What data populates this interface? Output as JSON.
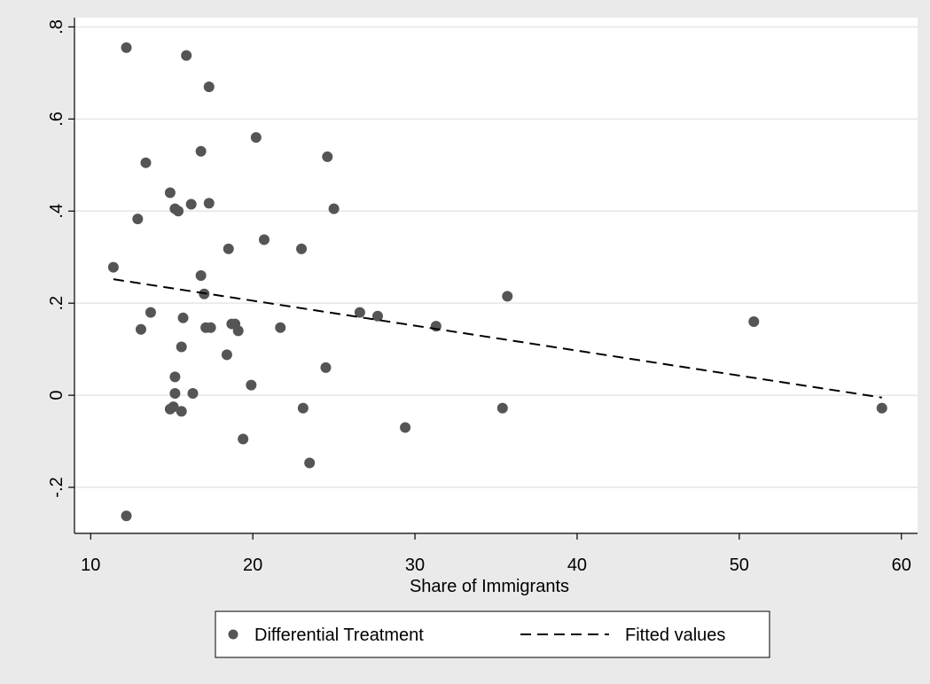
{
  "chart_data": {
    "type": "scatter",
    "xlabel": "Share of Immigrants",
    "ylabel": "",
    "xlim": [
      9,
      61
    ],
    "ylim": [
      -0.3,
      0.82
    ],
    "x_ticks": [
      10,
      20,
      30,
      40,
      50,
      60
    ],
    "x_tick_labels": [
      "10",
      "20",
      "30",
      "40",
      "50",
      "60"
    ],
    "y_ticks": [
      -0.2,
      0,
      0.2,
      0.4,
      0.6,
      0.8
    ],
    "y_tick_labels": [
      "-.2",
      "0",
      ".2",
      ".4",
      ".6",
      ".8"
    ],
    "grid": "horizontal",
    "legend_position": "bottom",
    "series": [
      {
        "name": "Differential Treatment",
        "kind": "scatter",
        "color": "#555555",
        "points": [
          [
            12.2,
            0.755
          ],
          [
            15.9,
            0.738
          ],
          [
            17.3,
            0.67
          ],
          [
            20.2,
            0.56
          ],
          [
            16.8,
            0.53
          ],
          [
            24.6,
            0.518
          ],
          [
            13.4,
            0.505
          ],
          [
            14.9,
            0.44
          ],
          [
            16.2,
            0.415
          ],
          [
            17.3,
            0.417
          ],
          [
            15.2,
            0.405
          ],
          [
            15.4,
            0.4
          ],
          [
            25.0,
            0.405
          ],
          [
            12.9,
            0.383
          ],
          [
            20.7,
            0.338
          ],
          [
            18.5,
            0.318
          ],
          [
            23.0,
            0.318
          ],
          [
            11.4,
            0.278
          ],
          [
            16.8,
            0.26
          ],
          [
            17.0,
            0.22
          ],
          [
            35.7,
            0.215
          ],
          [
            13.7,
            0.18
          ],
          [
            26.6,
            0.18
          ],
          [
            27.7,
            0.172
          ],
          [
            15.7,
            0.168
          ],
          [
            18.7,
            0.155
          ],
          [
            18.9,
            0.155
          ],
          [
            13.1,
            0.143
          ],
          [
            17.1,
            0.147
          ],
          [
            17.4,
            0.147
          ],
          [
            21.7,
            0.147
          ],
          [
            19.1,
            0.14
          ],
          [
            31.3,
            0.15
          ],
          [
            50.9,
            0.16
          ],
          [
            18.4,
            0.088
          ],
          [
            15.6,
            0.105
          ],
          [
            24.5,
            0.06
          ],
          [
            15.2,
            0.04
          ],
          [
            19.9,
            0.022
          ],
          [
            15.2,
            0.004
          ],
          [
            16.3,
            0.004
          ],
          [
            15.1,
            -0.025
          ],
          [
            14.9,
            -0.03
          ],
          [
            15.6,
            -0.035
          ],
          [
            23.1,
            -0.028
          ],
          [
            35.4,
            -0.028
          ],
          [
            58.8,
            -0.028
          ],
          [
            29.4,
            -0.07
          ],
          [
            19.4,
            -0.095
          ],
          [
            23.5,
            -0.147
          ],
          [
            12.2,
            -0.262
          ]
        ]
      },
      {
        "name": "Fitted values",
        "kind": "line",
        "style": "dashed",
        "color": "#000000",
        "x": [
          11.4,
          58.8
        ],
        "y": [
          0.252,
          -0.005
        ]
      }
    ]
  }
}
